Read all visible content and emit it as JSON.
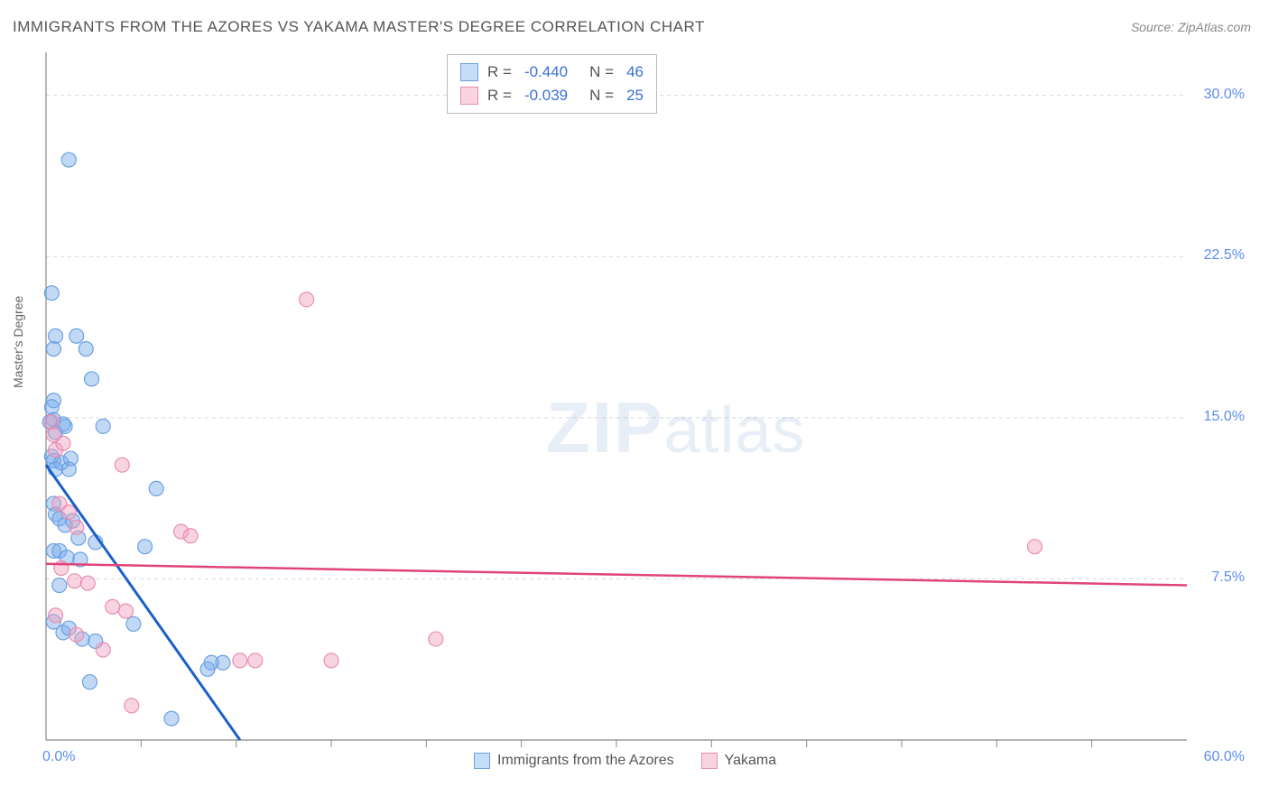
{
  "title": "IMMIGRANTS FROM THE AZORES VS YAKAMA MASTER'S DEGREE CORRELATION CHART",
  "source": "Source: ZipAtlas.com",
  "watermark": {
    "bold": "ZIP",
    "rest": "atlas"
  },
  "chart": {
    "type": "scatter",
    "ylabel": "Master's Degree",
    "xlim": [
      0,
      60
    ],
    "ylim": [
      0,
      32
    ],
    "xticks": [
      0,
      60
    ],
    "xtick_labels": [
      "0.0%",
      "60.0%"
    ],
    "xtick_minor": [
      5,
      10,
      15,
      20,
      25,
      30,
      35,
      40,
      45,
      50,
      55
    ],
    "yticks": [
      7.5,
      15.0,
      22.5,
      30.0
    ],
    "ytick_labels": [
      "7.5%",
      "15.0%",
      "22.5%",
      "30.0%"
    ],
    "grid_color": "#d8d8d8",
    "axis_color": "#888",
    "background_color": "#ffffff",
    "marker_radius": 8,
    "marker_stroke_width": 1.2,
    "series": [
      {
        "name": "Immigrants from the Azores",
        "fill_color": "rgba(120,170,235,0.45)",
        "stroke_color": "#6aa0e0",
        "swatch_fill": "#c6ddf7",
        "swatch_border": "#6aa0e0",
        "R": "-0.440",
        "N": "46",
        "regression": {
          "x1": 0,
          "y1": 12.8,
          "x2": 10.2,
          "y2": 0,
          "color": "#1b5fc9",
          "width": 3
        },
        "points": [
          [
            1.2,
            27.0
          ],
          [
            0.3,
            20.8
          ],
          [
            0.5,
            18.8
          ],
          [
            0.4,
            18.2
          ],
          [
            1.6,
            18.8
          ],
          [
            2.1,
            18.2
          ],
          [
            0.4,
            15.8
          ],
          [
            0.3,
            15.5
          ],
          [
            0.4,
            14.9
          ],
          [
            0.2,
            14.8
          ],
          [
            0.5,
            14.3
          ],
          [
            1.0,
            14.6
          ],
          [
            2.4,
            16.8
          ],
          [
            0.3,
            13.2
          ],
          [
            0.4,
            13.0
          ],
          [
            0.5,
            12.6
          ],
          [
            0.8,
            12.9
          ],
          [
            1.2,
            12.6
          ],
          [
            1.3,
            13.1
          ],
          [
            0.9,
            14.7
          ],
          [
            3.0,
            14.6
          ],
          [
            0.4,
            11.0
          ],
          [
            0.5,
            10.5
          ],
          [
            0.7,
            10.3
          ],
          [
            1.0,
            10.0
          ],
          [
            1.4,
            10.2
          ],
          [
            1.7,
            9.4
          ],
          [
            2.6,
            9.2
          ],
          [
            5.8,
            11.7
          ],
          [
            0.4,
            8.8
          ],
          [
            0.7,
            8.8
          ],
          [
            1.1,
            8.5
          ],
          [
            1.8,
            8.4
          ],
          [
            5.2,
            9.0
          ],
          [
            0.7,
            7.2
          ],
          [
            0.4,
            5.5
          ],
          [
            0.9,
            5.0
          ],
          [
            1.2,
            5.2
          ],
          [
            1.9,
            4.7
          ],
          [
            2.6,
            4.6
          ],
          [
            4.6,
            5.4
          ],
          [
            8.7,
            3.6
          ],
          [
            9.3,
            3.6
          ],
          [
            2.3,
            2.7
          ],
          [
            6.6,
            1.0
          ],
          [
            8.5,
            3.3
          ]
        ]
      },
      {
        "name": "Yakama",
        "fill_color": "rgba(240,160,190,0.45)",
        "stroke_color": "#e88fb0",
        "swatch_fill": "#f7d4e0",
        "swatch_border": "#e88fb0",
        "R": "-0.039",
        "N": "25",
        "regression": {
          "x1": 0,
          "y1": 8.2,
          "x2": 60,
          "y2": 7.2,
          "color": "#e0447a",
          "width": 2.5
        },
        "points": [
          [
            13.7,
            20.5
          ],
          [
            0.3,
            14.8
          ],
          [
            0.4,
            14.2
          ],
          [
            0.5,
            13.5
          ],
          [
            0.9,
            13.8
          ],
          [
            4.0,
            12.8
          ],
          [
            0.7,
            11.0
          ],
          [
            1.2,
            10.6
          ],
          [
            1.6,
            9.9
          ],
          [
            7.1,
            9.7
          ],
          [
            7.6,
            9.5
          ],
          [
            52.0,
            9.0
          ],
          [
            0.8,
            8.0
          ],
          [
            1.5,
            7.4
          ],
          [
            2.2,
            7.3
          ],
          [
            3.5,
            6.2
          ],
          [
            4.2,
            6.0
          ],
          [
            0.5,
            5.8
          ],
          [
            1.6,
            4.9
          ],
          [
            3.0,
            4.2
          ],
          [
            10.2,
            3.7
          ],
          [
            11.0,
            3.7
          ],
          [
            15.0,
            3.7
          ],
          [
            20.5,
            4.7
          ],
          [
            4.5,
            1.6
          ]
        ]
      }
    ],
    "legend_bottom": [
      {
        "label": "Immigrants from the Azores",
        "swatch_fill": "#c6ddf7",
        "swatch_border": "#6aa0e0"
      },
      {
        "label": "Yakama",
        "swatch_fill": "#f7d4e0",
        "swatch_border": "#e88fb0"
      }
    ]
  }
}
